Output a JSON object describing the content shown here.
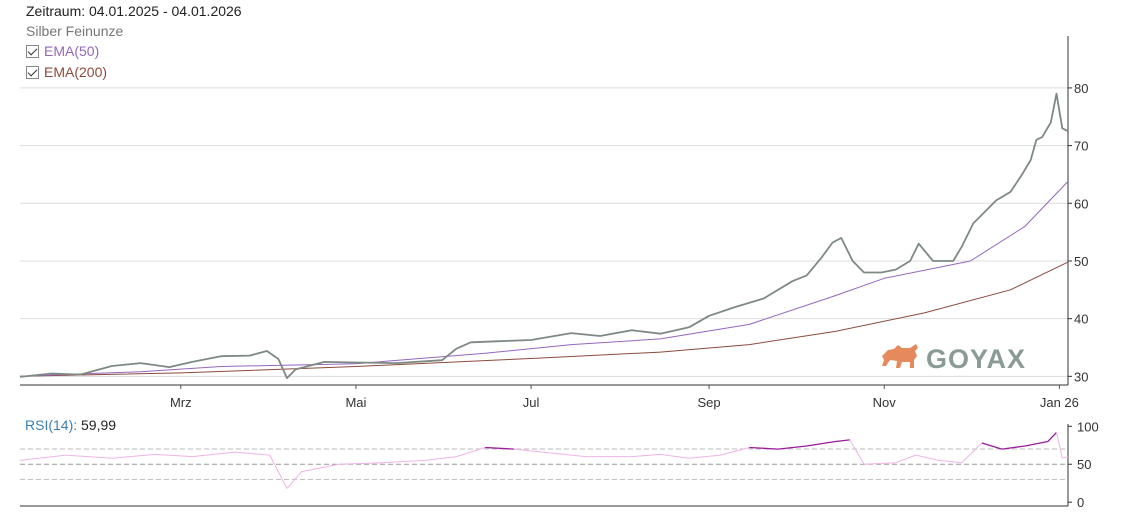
{
  "header": {
    "period_label": "Zeitraum:",
    "period_range": "04.01.2025 - 04.01.2026",
    "instrument": "Silber Feinunze"
  },
  "legend": [
    {
      "label": "EMA(50)",
      "checked": true,
      "color": "#9467bd"
    },
    {
      "label": "EMA(200)",
      "checked": true,
      "color": "#8c4a3e"
    }
  ],
  "logo": {
    "text": "GOYAX",
    "text_color": "#8a9a96",
    "bull_color": "#e58a5c"
  },
  "colors": {
    "price": "#7d8a82",
    "ema50": "#9467bd",
    "ema200": "#8c4a3e",
    "rsi_normal": "#f0b3e8",
    "rsi_extreme": "#9b1b9b",
    "grid": "#dddddd"
  },
  "chart_data": [
    {
      "type": "line",
      "title": "Silber Feinunze",
      "x_axis": {
        "type": "date",
        "start": "2025-01-04",
        "end": "2026-01-04",
        "tick_labels": [
          "Mrz",
          "Mai",
          "Jul",
          "Sep",
          "Nov",
          "Jan 26"
        ],
        "tick_dates": [
          "2025-03-01",
          "2025-05-01",
          "2025-07-01",
          "2025-09-01",
          "2025-11-01",
          "2026-01-01"
        ]
      },
      "y_axis": {
        "position": "right",
        "ticks": [
          30,
          40,
          50,
          60,
          70,
          80
        ],
        "ylim": [
          28.5,
          89
        ]
      },
      "grid": true,
      "series": [
        {
          "name": "Silber Feinunze",
          "color": "#7d8a82",
          "x": [
            "2025-01-04",
            "2025-01-15",
            "2025-01-25",
            "2025-02-05",
            "2025-02-15",
            "2025-02-25",
            "2025-03-05",
            "2025-03-15",
            "2025-03-25",
            "2025-03-31",
            "2025-04-04",
            "2025-04-07",
            "2025-04-10",
            "2025-04-20",
            "2025-05-01",
            "2025-05-15",
            "2025-05-31",
            "2025-06-05",
            "2025-06-10",
            "2025-06-20",
            "2025-07-01",
            "2025-07-15",
            "2025-07-25",
            "2025-08-05",
            "2025-08-15",
            "2025-08-25",
            "2025-09-01",
            "2025-09-10",
            "2025-09-20",
            "2025-09-30",
            "2025-10-05",
            "2025-10-10",
            "2025-10-14",
            "2025-10-17",
            "2025-10-21",
            "2025-10-25",
            "2025-10-31",
            "2025-11-05",
            "2025-11-10",
            "2025-11-13",
            "2025-11-18",
            "2025-11-25",
            "2025-11-28",
            "2025-12-02",
            "2025-12-05",
            "2025-12-10",
            "2025-12-15",
            "2025-12-19",
            "2025-12-22",
            "2025-12-24",
            "2025-12-26",
            "2025-12-29",
            "2025-12-31",
            "2026-01-02",
            "2026-01-04"
          ],
          "values": [
            29.9,
            30.5,
            30.3,
            31.8,
            32.3,
            31.6,
            32.5,
            33.5,
            33.6,
            34.4,
            33.0,
            29.7,
            31.2,
            32.5,
            32.4,
            32.3,
            32.8,
            34.8,
            35.9,
            36.1,
            36.3,
            37.5,
            37.0,
            38.0,
            37.4,
            38.5,
            40.5,
            42.0,
            43.5,
            46.5,
            47.5,
            50.5,
            53.2,
            54.0,
            50.0,
            48.0,
            48.0,
            48.5,
            50.0,
            53.0,
            50.0,
            50.0,
            52.5,
            56.5,
            58.0,
            60.5,
            62.0,
            65.0,
            67.5,
            71.0,
            71.5,
            74.0,
            79.0,
            73.0,
            72.5
          ]
        },
        {
          "name": "EMA(50)",
          "color": "#9467bd",
          "x": [
            "2025-01-04",
            "2025-02-15",
            "2025-03-15",
            "2025-05-01",
            "2025-06-15",
            "2025-07-15",
            "2025-08-15",
            "2025-09-15",
            "2025-10-15",
            "2025-11-01",
            "2025-12-01",
            "2025-12-20",
            "2026-01-04"
          ],
          "values": [
            30.0,
            30.8,
            31.7,
            32.2,
            34.0,
            35.5,
            36.5,
            39.0,
            44.0,
            47.0,
            50.0,
            56.0,
            63.8
          ]
        },
        {
          "name": "EMA(200)",
          "color": "#8c4a3e",
          "x": [
            "2025-01-04",
            "2025-03-01",
            "2025-05-01",
            "2025-07-01",
            "2025-08-15",
            "2025-09-15",
            "2025-10-15",
            "2025-11-15",
            "2025-12-15",
            "2026-01-04"
          ],
          "values": [
            30.0,
            30.6,
            31.7,
            33.1,
            34.2,
            35.5,
            37.8,
            41.0,
            45.0,
            49.8
          ]
        }
      ]
    },
    {
      "type": "line",
      "title": "RSI(14)",
      "current_value_label": "59,99",
      "y_axis": {
        "position": "right",
        "ticks": [
          0,
          50,
          100
        ],
        "ylim": [
          -5,
          103
        ],
        "reference_lines": [
          30,
          50,
          70
        ]
      },
      "series": [
        {
          "name": "RSI(14)",
          "x": [
            "2025-01-04",
            "2025-01-20",
            "2025-02-05",
            "2025-02-20",
            "2025-03-05",
            "2025-03-20",
            "2025-04-01",
            "2025-04-07",
            "2025-04-12",
            "2025-04-25",
            "2025-05-10",
            "2025-05-25",
            "2025-06-05",
            "2025-06-15",
            "2025-06-25",
            "2025-07-05",
            "2025-07-20",
            "2025-08-05",
            "2025-08-15",
            "2025-08-25",
            "2025-09-05",
            "2025-09-15",
            "2025-09-25",
            "2025-10-05",
            "2025-10-15",
            "2025-10-20",
            "2025-10-25",
            "2025-11-05",
            "2025-11-12",
            "2025-11-20",
            "2025-11-28",
            "2025-12-05",
            "2025-12-12",
            "2025-12-20",
            "2025-12-28",
            "2025-12-31",
            "2026-01-02",
            "2026-01-04"
          ],
          "values": [
            55,
            62,
            58,
            63,
            60,
            66,
            62,
            18,
            40,
            50,
            52,
            55,
            60,
            72,
            70,
            66,
            60,
            60,
            63,
            58,
            62,
            72,
            70,
            74,
            80,
            82,
            50,
            52,
            62,
            55,
            52,
            78,
            70,
            74,
            80,
            92,
            58,
            60
          ]
        }
      ]
    }
  ]
}
